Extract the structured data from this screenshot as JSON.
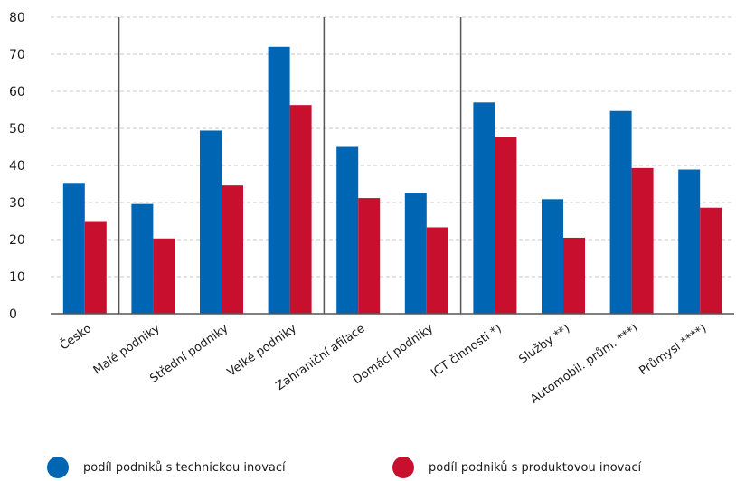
{
  "chart_data": {
    "type": "bar",
    "categories": [
      "Česko",
      "Malé podniky",
      "Střední podniky",
      "Velké podniky",
      "Zahraniční afilace",
      "Domácí podniky",
      "ICT činnosti *)",
      "Služby **)",
      "Automobil. prům. ***)",
      "Průmysl ****)"
    ],
    "series": [
      {
        "name": "podíl podniků s technickou inovací",
        "color": "#0066b3",
        "values": [
          35.3,
          29.6,
          49.4,
          72.0,
          45.0,
          32.6,
          57.0,
          30.9,
          54.7,
          38.9
        ]
      },
      {
        "name": "podíl podniků s produktovou inovací",
        "color": "#c8102e",
        "values": [
          25.0,
          20.3,
          34.6,
          56.3,
          31.2,
          23.3,
          47.8,
          20.5,
          39.3,
          28.6
        ]
      }
    ],
    "ylim": [
      0,
      80
    ],
    "yticks": [
      0,
      10,
      20,
      30,
      40,
      50,
      60,
      70,
      80
    ],
    "group_separators_after": [
      "Česko",
      "Velké podniky",
      "Domácí podniky"
    ],
    "grid": "horizontal-dashed",
    "legend_position": "bottom",
    "title": "",
    "xlabel": "",
    "ylabel": ""
  }
}
